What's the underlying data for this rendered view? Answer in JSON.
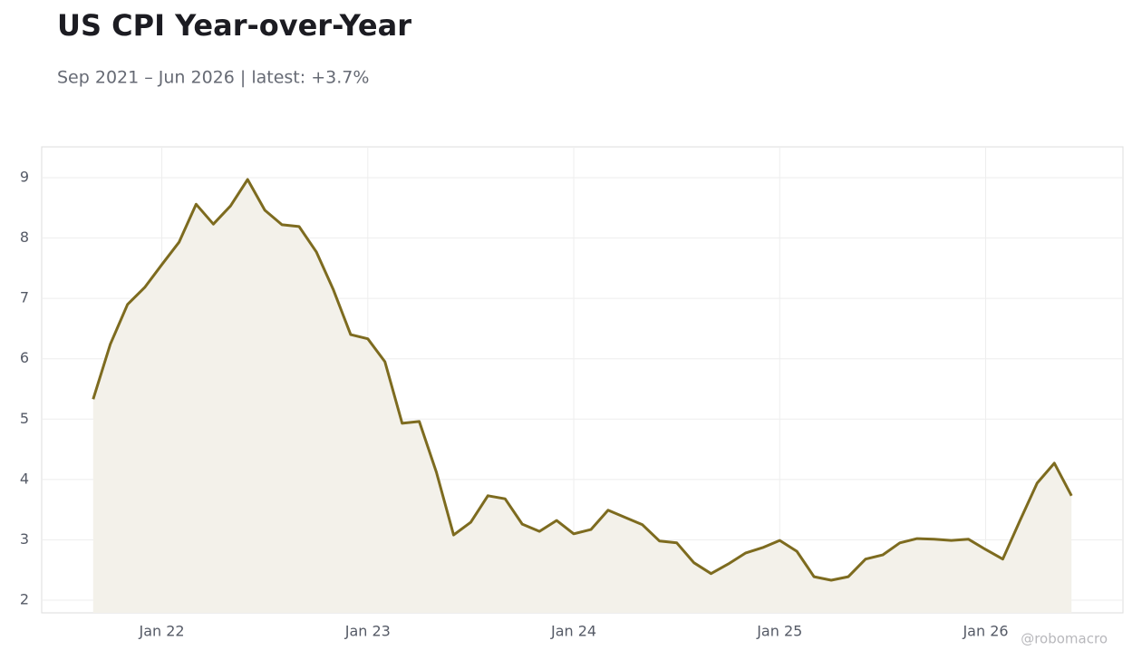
{
  "chart_data": {
    "type": "area",
    "title": "US CPI Year-over-Year",
    "subtitle": "Sep 2021 – Jun 2026 | latest: +3.7%",
    "watermark": "@robomacro",
    "color": "#7d6b1f",
    "fill_color": "#f3f1ea",
    "grid": true,
    "x": [
      "2021-09",
      "2021-10",
      "2021-11",
      "2021-12",
      "2022-01",
      "2022-02",
      "2022-03",
      "2022-04",
      "2022-05",
      "2022-06",
      "2022-07",
      "2022-08",
      "2022-09",
      "2022-10",
      "2022-11",
      "2022-12",
      "2023-01",
      "2023-02",
      "2023-03",
      "2023-04",
      "2023-05",
      "2023-06",
      "2023-07",
      "2023-08",
      "2023-09",
      "2023-10",
      "2023-11",
      "2023-12",
      "2024-01",
      "2024-02",
      "2024-03",
      "2024-04",
      "2024-05",
      "2024-06",
      "2024-07",
      "2024-08",
      "2024-09",
      "2024-10",
      "2024-11",
      "2024-12",
      "2025-01",
      "2025-02",
      "2025-03",
      "2025-04",
      "2025-05",
      "2025-06",
      "2025-07",
      "2025-08",
      "2025-09",
      "2025-10",
      "2025-11",
      "2025-12",
      "2026-01",
      "2026-02",
      "2026-03",
      "2026-04",
      "2026-05",
      "2026-06"
    ],
    "values": [
      5.33,
      6.24,
      6.9,
      7.18,
      7.56,
      7.93,
      8.56,
      8.23,
      8.53,
      8.97,
      8.46,
      8.22,
      8.19,
      7.77,
      7.14,
      6.4,
      6.33,
      5.95,
      4.93,
      4.96,
      4.12,
      3.08,
      3.29,
      3.73,
      3.68,
      3.26,
      3.14,
      3.32,
      3.1,
      3.17,
      3.49,
      3.37,
      3.25,
      2.98,
      2.95,
      2.62,
      2.44,
      2.6,
      2.78,
      2.87,
      2.99,
      2.81,
      2.39,
      2.33,
      2.39,
      2.68,
      2.75,
      2.95,
      3.02,
      3.01,
      2.99,
      3.01,
      2.84,
      2.68,
      3.32,
      3.94,
      4.27,
      3.73
    ],
    "xlim": [
      "2021-06",
      "2026-09"
    ],
    "xticks": [
      {
        "value": "2022-01",
        "label": "Jan 22"
      },
      {
        "value": "2023-01",
        "label": "Jan 23"
      },
      {
        "value": "2024-01",
        "label": "Jan 24"
      },
      {
        "value": "2025-01",
        "label": "Jan 25"
      },
      {
        "value": "2026-01",
        "label": "Jan 26"
      }
    ],
    "ylim": [
      1.79,
      9.51
    ],
    "yticks": [
      2,
      3,
      4,
      5,
      6,
      7,
      8,
      9
    ]
  }
}
